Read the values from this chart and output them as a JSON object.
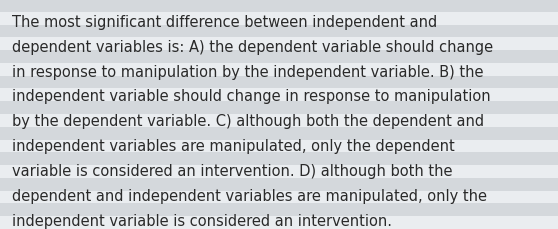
{
  "lines": [
    "The most significant difference between independent and",
    "dependent variables is: A) the dependent variable should change",
    "in response to manipulation by the independent variable. B) the",
    "independent variable should change in response to manipulation",
    "by the dependent variable. C) although both the dependent and",
    "independent variables are manipulated, only the dependent",
    "variable is considered an intervention. D) although both the",
    "dependent and independent variables are manipulated, only the",
    "independent variable is considered an intervention."
  ],
  "background_color": "#e0e4e8",
  "stripe_color_light": "#eaedf0",
  "stripe_color_dark": "#d4d8dc",
  "text_color": "#2a2a2a",
  "font_size": 10.5,
  "num_stripes": 18
}
